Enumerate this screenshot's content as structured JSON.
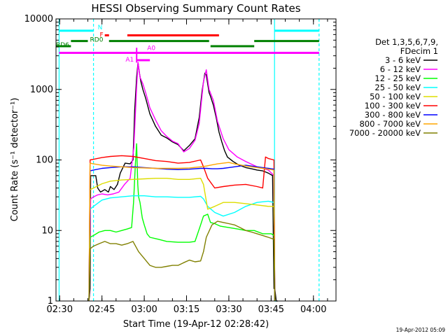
{
  "chart_data": {
    "type": "line",
    "title": "HESSI Observing Summary Count Rates",
    "xlabel": "Start Time (19-Apr-12 02:28:42)",
    "ylabel": "Count Rate (s⁻¹ detector⁻¹)",
    "x_scale": "time (minutes after 02:30 UT)",
    "xlim": [
      -1.3,
      98
    ],
    "y_scale": "log",
    "ylim": [
      1,
      10000
    ],
    "x_ticks": [
      {
        "t": 0,
        "label": "02:30"
      },
      {
        "t": 15,
        "label": "02:45"
      },
      {
        "t": 30,
        "label": "03:00"
      },
      {
        "t": 45,
        "label": "03:15"
      },
      {
        "t": 60,
        "label": "03:30"
      },
      {
        "t": 75,
        "label": "03:45"
      },
      {
        "t": 90,
        "label": "04:00"
      }
    ],
    "y_ticks": [
      {
        "v": 1,
        "label": "1"
      },
      {
        "v": 10,
        "label": "10"
      },
      {
        "v": 100,
        "label": "100"
      },
      {
        "v": 1000,
        "label": "1000"
      },
      {
        "v": 10000,
        "label": "10000"
      }
    ],
    "legend": {
      "placement": "right",
      "header": [
        "Det 1,3,5,6,7,9,",
        "FDecim 1"
      ]
    },
    "series": [
      {
        "name": "3 - 6 keV",
        "color": "#000000",
        "x": [
          10.4,
          10.8,
          11,
          12.8,
          13.5,
          14.5,
          16,
          17.3,
          18,
          19.3,
          20.5,
          21.5,
          23.2,
          25,
          26,
          26.6,
          27.3,
          27.8,
          28.3,
          28.8,
          29.5,
          30.5,
          32,
          34,
          36,
          38,
          40,
          42,
          44,
          46,
          48,
          49.5,
          50.5,
          51.5,
          52,
          52.5,
          53,
          53.5,
          54.5,
          55.5,
          56.5,
          57.5,
          58.5,
          59.5,
          61.5,
          63.5,
          66,
          68,
          70,
          72,
          74,
          75.5,
          76,
          76.3,
          76.8,
          77.3
        ],
        "y": [
          1,
          1.5,
          60,
          60,
          40,
          35,
          38,
          35,
          42,
          38,
          45,
          65,
          90,
          88,
          100,
          500,
          1500,
          2400,
          1700,
          1300,
          1000,
          750,
          450,
          300,
          225,
          205,
          180,
          165,
          135,
          160,
          200,
          400,
          950,
          1700,
          1600,
          1200,
          900,
          800,
          600,
          400,
          250,
          180,
          135,
          110,
          95,
          85,
          78,
          75,
          72,
          70,
          65,
          60,
          1.5,
          1.5,
          1,
          1
        ]
      },
      {
        "name": "6 - 12 keV",
        "color": "#ff00ff",
        "x": [
          10.5,
          11,
          12,
          13.5,
          15,
          17,
          19,
          21,
          23,
          25,
          26.3,
          27.3,
          27.8,
          28.5,
          29.5,
          30.5,
          32,
          34,
          36,
          38,
          40,
          42,
          44,
          46,
          48,
          49.5,
          51,
          52,
          53,
          54.5,
          56,
          58,
          60,
          63,
          66,
          70,
          74,
          76,
          76.3
        ],
        "y": [
          1.2,
          28,
          30,
          32,
          33,
          32,
          33,
          35,
          45,
          55,
          150,
          1100,
          2400,
          1500,
          1200,
          900,
          550,
          370,
          260,
          215,
          185,
          170,
          130,
          145,
          190,
          330,
          1300,
          1900,
          1000,
          700,
          350,
          200,
          140,
          110,
          95,
          80,
          72,
          60,
          1
        ]
      },
      {
        "name": "12 - 25 keV",
        "color": "#00ff00",
        "x": [
          10.4,
          10.8,
          12,
          14,
          16,
          18,
          20,
          22,
          24,
          25.5,
          26.2,
          26.8,
          27.3,
          27.7,
          28,
          28.5,
          29.3,
          30,
          31,
          32,
          35,
          38,
          42,
          46,
          48,
          50,
          51,
          52.5,
          53.5,
          55,
          57,
          60,
          63,
          66,
          69,
          72,
          75,
          76,
          76.3
        ],
        "y": [
          1,
          8,
          8.5,
          9.5,
          10,
          10,
          9.5,
          10,
          10.5,
          11,
          25,
          80,
          170,
          45,
          30,
          25,
          15,
          12,
          9,
          8,
          7.5,
          7,
          6.8,
          6.8,
          7,
          12,
          16,
          17,
          13,
          12.5,
          11.5,
          11,
          10.5,
          10,
          10,
          9,
          9,
          8.5,
          1
        ]
      },
      {
        "name": "25 - 50 keV",
        "color": "#00ffff",
        "x": [
          10.4,
          10.8,
          12,
          15,
          18,
          22,
          26,
          30,
          34,
          38,
          42,
          46,
          50,
          51,
          52.5,
          55,
          58,
          62,
          66,
          70,
          74,
          76,
          76.3,
          76.8
        ],
        "y": [
          1,
          20,
          22,
          27,
          29,
          30,
          31,
          31,
          30,
          30,
          29.5,
          29.5,
          30.5,
          28,
          22,
          18,
          16,
          18,
          22,
          25,
          26,
          25,
          1,
          1
        ]
      },
      {
        "name": "50 - 100 keV",
        "color": "#dddd00",
        "x": [
          10.4,
          10.8,
          12,
          15,
          18,
          22,
          26,
          30,
          34,
          38,
          42,
          46,
          50,
          51,
          52.5,
          55,
          58,
          62,
          66,
          70,
          74,
          76,
          76.3
        ],
        "y": [
          1,
          38,
          40,
          46,
          50,
          52,
          53,
          54,
          55,
          55,
          53,
          53,
          55,
          45,
          20,
          22,
          25,
          25,
          24,
          23,
          22,
          22,
          1
        ]
      },
      {
        "name": "100 - 300 keV",
        "color": "#ff0000",
        "x": [
          10.4,
          10.8,
          12,
          15,
          18,
          22,
          26,
          30,
          34,
          38,
          42,
          46,
          50,
          51,
          52.5,
          55,
          58,
          62,
          66,
          70,
          72,
          73,
          74,
          76,
          76.3
        ],
        "y": [
          1,
          100,
          102,
          108,
          112,
          115,
          112,
          105,
          98,
          95,
          90,
          92,
          100,
          80,
          55,
          40,
          42,
          44,
          45,
          42,
          40,
          110,
          105,
          100,
          1
        ]
      },
      {
        "name": "300 - 800 keV",
        "color": "#0000ff",
        "x": [
          10.4,
          10.8,
          12,
          15,
          18,
          22,
          26,
          30,
          34,
          38,
          42,
          46,
          50,
          52,
          54,
          56,
          58,
          60,
          62,
          64,
          66,
          68,
          70,
          72,
          74,
          76,
          76.3
        ],
        "y": [
          1,
          70,
          72,
          76,
          78,
          80,
          80,
          78,
          76,
          74,
          73,
          74,
          76,
          76,
          75,
          75,
          76,
          78,
          80,
          82,
          84,
          82,
          80,
          78,
          76,
          74,
          1
        ]
      },
      {
        "name": "800 - 7000 keV",
        "color": "#ffa500",
        "x": [
          10.4,
          10.8,
          12,
          15,
          18,
          22,
          26,
          30,
          34,
          38,
          42,
          46,
          50,
          52,
          54,
          56,
          58,
          60,
          62,
          64,
          66,
          68,
          70,
          72,
          74,
          76,
          76.3
        ],
        "y": [
          1,
          90,
          88,
          84,
          82,
          80,
          78,
          77,
          76,
          76,
          76,
          77,
          80,
          82,
          85,
          88,
          90,
          92,
          88,
          85,
          82,
          80,
          78,
          76,
          74,
          72,
          1
        ]
      },
      {
        "name": "7000 - 20000 keV",
        "color": "#808000",
        "x": [
          10.4,
          10.8,
          12,
          14,
          16,
          18,
          20,
          22,
          24,
          26,
          28,
          30,
          32,
          34,
          36,
          38,
          40,
          42,
          44,
          46,
          48,
          50,
          51,
          52,
          54,
          56,
          58,
          60,
          62,
          64,
          66,
          68,
          70,
          72,
          74,
          76,
          76.3
        ],
        "y": [
          1,
          5.5,
          6,
          6.5,
          7,
          6.5,
          6.5,
          6.2,
          6.5,
          7,
          5,
          4,
          3.2,
          3,
          3,
          3.1,
          3.2,
          3.2,
          3.5,
          3.8,
          3.6,
          3.7,
          5,
          8,
          12,
          13.5,
          13,
          12.5,
          12,
          11,
          10,
          9.5,
          9,
          8.5,
          8,
          7.5,
          1
        ]
      }
    ],
    "flag_bars": [
      {
        "label": "N",
        "color": "#00ffff",
        "y_value": 6800,
        "segments": [
          [
            -0.3,
            12
          ],
          [
            76.2,
            92
          ]
        ],
        "label_at_end_of_segment": 0
      },
      {
        "label": "F",
        "color": "#ff0000",
        "y_value": 5850,
        "segments": [
          [
            16,
            17.5
          ],
          [
            24,
            56.5
          ]
        ],
        "label_at_end_of_segment": 0
      },
      {
        "label": "RD0",
        "color": "#008000",
        "y_value": 4850,
        "segments": [
          [
            4,
            10
          ],
          [
            17.5,
            53
          ],
          [
            69,
            92
          ]
        ],
        "label_at_end_of_segment": 0
      },
      {
        "label": "RD6",
        "color": "#008000",
        "y_value": 4100,
        "segments": [
          [
            -1.3,
            4
          ],
          [
            53.5,
            69
          ]
        ],
        "label_at_end_of_segment": 0
      },
      {
        "label": "A1",
        "color": "#ff00ff",
        "y_value": 2600,
        "segments": [
          [
            27.3,
            32
          ]
        ],
        "label_at_end_of_segment": 0
      },
      {
        "label": "A0",
        "color": "#ff00ff",
        "y_value": 3300,
        "segments": [
          [
            -0.2,
            92
          ]
        ],
        "label_at_end_of_segment": 0
      }
    ],
    "vertical_markers": [
      {
        "t": -0.2,
        "style": "solid",
        "color": "#00ffff"
      },
      {
        "t": 12,
        "style": "dashed",
        "color": "#00ffff"
      },
      {
        "t": 76.2,
        "style": "solid",
        "color": "#00ffff"
      },
      {
        "t": 92,
        "style": "dashed",
        "color": "#00ffff"
      }
    ],
    "footer_text": "19-Apr-2012 05:09"
  }
}
